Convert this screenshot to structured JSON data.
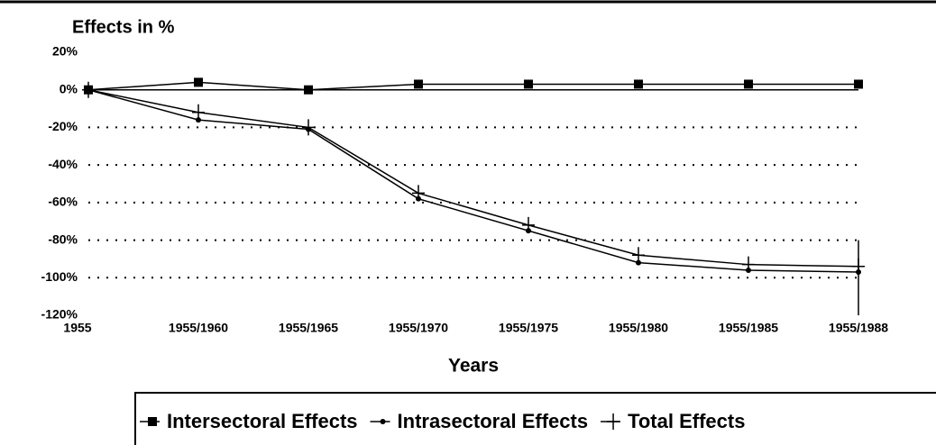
{
  "chart_data": {
    "type": "line",
    "title": "Effects in %",
    "xlabel": "Years",
    "categories": [
      "1955",
      "1955/1960",
      "1955/1965",
      "1955/1970",
      "1955/1975",
      "1955/1980",
      "1955/1985",
      "1955/1988"
    ],
    "series": [
      {
        "name": "Intersectoral Effects",
        "color": "#000000",
        "marker": "square",
        "values": [
          0,
          4,
          0,
          3,
          3,
          3,
          3,
          3
        ]
      },
      {
        "name": "Intrasectoral Effects",
        "color": "#000000",
        "marker": "dot",
        "values": [
          0,
          -16,
          -21,
          -58,
          -75,
          -92,
          -96,
          -97
        ]
      },
      {
        "name": "Total Effects",
        "color": "#000000",
        "marker": "plus",
        "values": [
          0,
          -12,
          -20,
          -55,
          -72,
          -88,
          -93,
          -94
        ]
      }
    ],
    "ylim": [
      -120,
      20
    ],
    "yticks": [
      {
        "value": 20,
        "label": "20%"
      },
      {
        "value": 0,
        "label": "0%"
      },
      {
        "value": -20,
        "label": "-20%"
      },
      {
        "value": -40,
        "label": "-40%"
      },
      {
        "value": -60,
        "label": "-60%"
      },
      {
        "value": -80,
        "label": "-80%"
      },
      {
        "value": -100,
        "label": "-100%"
      },
      {
        "value": -120,
        "label": "-120%"
      }
    ],
    "grid": true,
    "legend": "bottom"
  }
}
